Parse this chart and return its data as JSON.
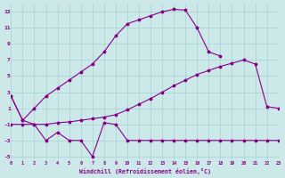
{
  "bg_color": "#cce8e8",
  "line_color": "#880088",
  "grid_color": "#99cccc",
  "xlabel": "Windchill (Refroidissement éolien,°C)",
  "xlim": [
    0,
    23
  ],
  "ylim": [
    -5.5,
    14.0
  ],
  "xtick_labels": [
    "0",
    "1",
    "2",
    "3",
    "4",
    "5",
    "6",
    "7",
    "8",
    "9",
    "10",
    "11",
    "12",
    "13",
    "14",
    "15",
    "16",
    "17",
    "18",
    "19",
    "20",
    "21",
    "22",
    "23"
  ],
  "ytick_vals": [
    -5,
    -3,
    -1,
    1,
    3,
    5,
    7,
    9,
    11,
    13
  ],
  "curve_top_x": [
    0,
    1,
    2,
    3,
    4,
    5,
    6,
    7,
    8,
    9,
    10,
    11,
    12,
    13,
    14,
    15,
    16,
    17,
    18
  ],
  "curve_top_y": [
    2.5,
    -0.5,
    1.0,
    2.5,
    3.5,
    4.5,
    5.5,
    6.5,
    8.0,
    10,
    11.5,
    12.0,
    12.5,
    13.0,
    13.3,
    13.2,
    11.0,
    8.0,
    7.5
  ],
  "curve_mid_x": [
    0,
    1,
    2,
    3,
    4,
    5,
    6,
    7,
    8,
    9,
    10,
    11,
    12,
    13,
    14,
    15,
    16,
    17,
    18,
    19,
    20,
    21,
    22,
    23
  ],
  "curve_mid_y": [
    -1.0,
    -1.0,
    -1.0,
    -1.0,
    -0.8,
    -0.7,
    -0.5,
    -0.3,
    -0.1,
    0.2,
    0.8,
    1.5,
    2.2,
    3.0,
    3.8,
    4.5,
    5.2,
    5.7,
    6.2,
    6.6,
    7.0,
    6.5,
    1.2,
    1.0
  ],
  "curve_bot_x": [
    0,
    1,
    2,
    3,
    4,
    5,
    6,
    7,
    8,
    9,
    10,
    11,
    12,
    13,
    14,
    15,
    16,
    17,
    18,
    19,
    20,
    21,
    22,
    23
  ],
  "curve_bot_y": [
    2.5,
    -0.5,
    -1.0,
    -3.0,
    -2.0,
    -3.0,
    -3.0,
    -5.0,
    -0.8,
    -1.0,
    -3.0,
    -3.0,
    -3.0,
    -3.0,
    -3.0,
    -3.0,
    -3.0,
    -3.0,
    -3.0,
    -3.0,
    -3.0,
    -3.0,
    -3.0,
    -3.0
  ]
}
